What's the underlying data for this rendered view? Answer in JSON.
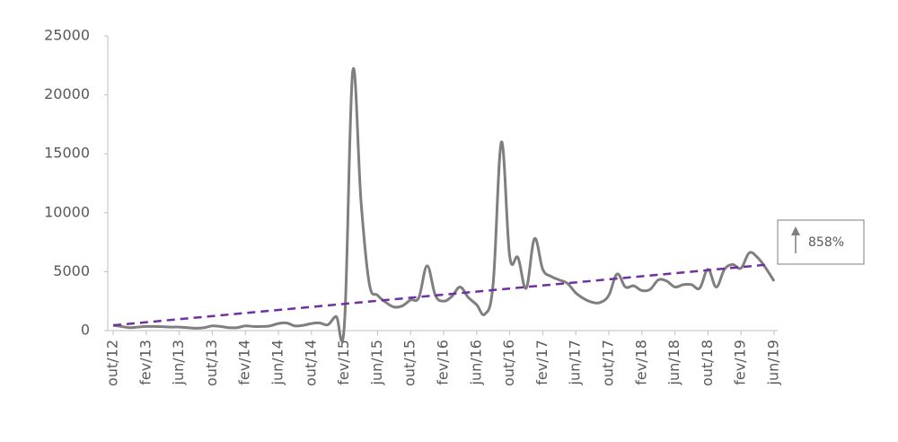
{
  "chart_data": {
    "type": "line",
    "categories": [
      "out/12",
      null,
      null,
      null,
      "fev/13",
      null,
      null,
      null,
      "jun/13",
      null,
      null,
      null,
      "out/13",
      null,
      null,
      null,
      "fev/14",
      null,
      null,
      null,
      "jun/14",
      null,
      null,
      null,
      "out/14",
      null,
      null,
      null,
      "fev/15",
      null,
      null,
      null,
      "jun/15",
      null,
      null,
      null,
      "out/15",
      null,
      null,
      null,
      "fev/16",
      null,
      null,
      null,
      "jun/16",
      null,
      null,
      null,
      "out/16",
      null,
      null,
      null,
      "fev/17",
      null,
      null,
      null,
      "jun/17",
      null,
      null,
      null,
      "out/17",
      null,
      null,
      null,
      "fev/18",
      null,
      null,
      null,
      "jun/18",
      null,
      null,
      null,
      "out/18",
      null,
      null,
      null,
      "fev/19",
      null,
      null,
      null,
      "jun/19"
    ],
    "values": [
      450,
      350,
      250,
      300,
      350,
      350,
      330,
      300,
      300,
      250,
      200,
      250,
      400,
      350,
      250,
      250,
      400,
      350,
      350,
      400,
      600,
      650,
      400,
      450,
      600,
      650,
      500,
      1200,
      600,
      22000,
      11000,
      4000,
      3000,
      2400,
      2000,
      2100,
      2600,
      2800,
      5500,
      3000,
      2500,
      2900,
      3700,
      2800,
      2200,
      1400,
      4000,
      16000,
      6300,
      6200,
      3600,
      7800,
      5200,
      4600,
      4300,
      4000,
      3200,
      2700,
      2400,
      2400,
      3000,
      4800,
      3700,
      3800,
      3400,
      3500,
      4300,
      4200,
      3700,
      3900,
      3900,
      3600,
      5200,
      3700,
      5200,
      5600,
      5300,
      6600,
      6200,
      5300,
      4200
    ],
    "color": "#7f7f7f",
    "trendline": {
      "start": 450,
      "end": 5600,
      "color": "#7030a0"
    },
    "annotation": "858%",
    "ylim": [
      0,
      25000
    ],
    "yticks": [
      0,
      5000,
      10000,
      15000,
      20000,
      25000
    ],
    "grid": false
  }
}
